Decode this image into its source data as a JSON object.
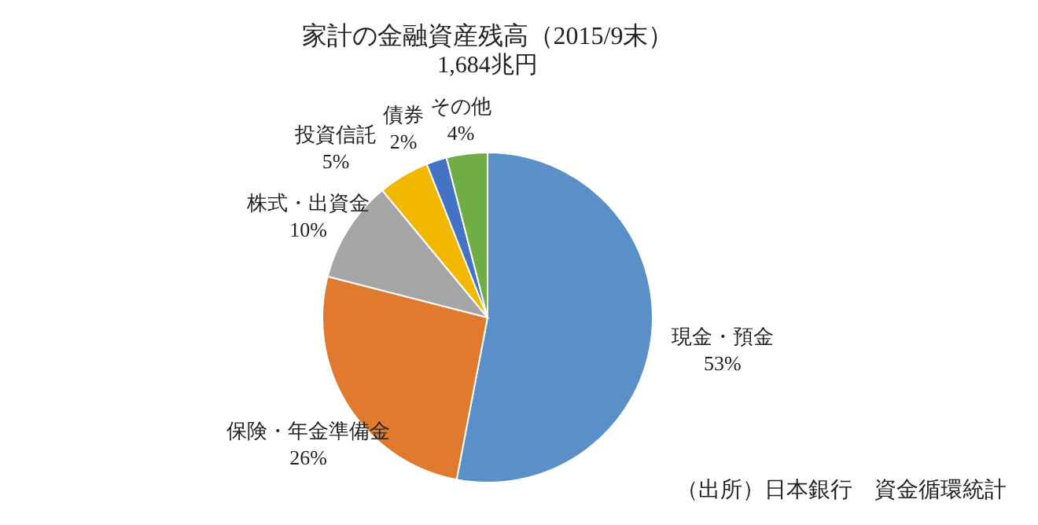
{
  "chart_data": {
    "type": "pie",
    "title": "家計の金融資産残高（2015/9末）",
    "subtitle": "1,684兆円",
    "categories": [
      "現金・預金",
      "保険・年金準備金",
      "株式・出資金",
      "投資信託",
      "債券",
      "その他"
    ],
    "values": [
      53,
      26,
      10,
      5,
      2,
      4
    ],
    "value_labels": [
      "53%",
      "26%",
      "10%",
      "5%",
      "2%",
      "4%"
    ],
    "colors": [
      "#5b8fc7",
      "#e07a2e",
      "#a5a5a5",
      "#f2b800",
      "#4472c4",
      "#70ad47"
    ],
    "annotations": [
      "（出所）日本銀行　資金循環統計"
    ],
    "legend": false
  }
}
